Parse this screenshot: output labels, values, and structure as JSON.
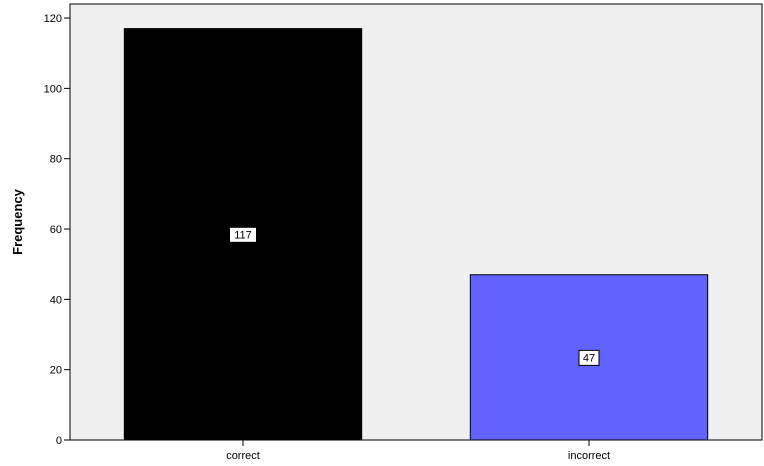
{
  "chart_data": {
    "type": "bar",
    "categories": [
      "correct",
      "incorrect"
    ],
    "values": [
      117,
      47
    ],
    "bar_colors": [
      "#000000",
      "#6262ff"
    ],
    "plot_background": "#f0f0f0",
    "title": "",
    "xlabel": "",
    "ylabel": "Frequency",
    "ylim": [
      0,
      124
    ],
    "yticks": [
      0,
      20,
      40,
      60,
      80,
      100,
      120
    ],
    "grid": false,
    "legend": "none"
  }
}
